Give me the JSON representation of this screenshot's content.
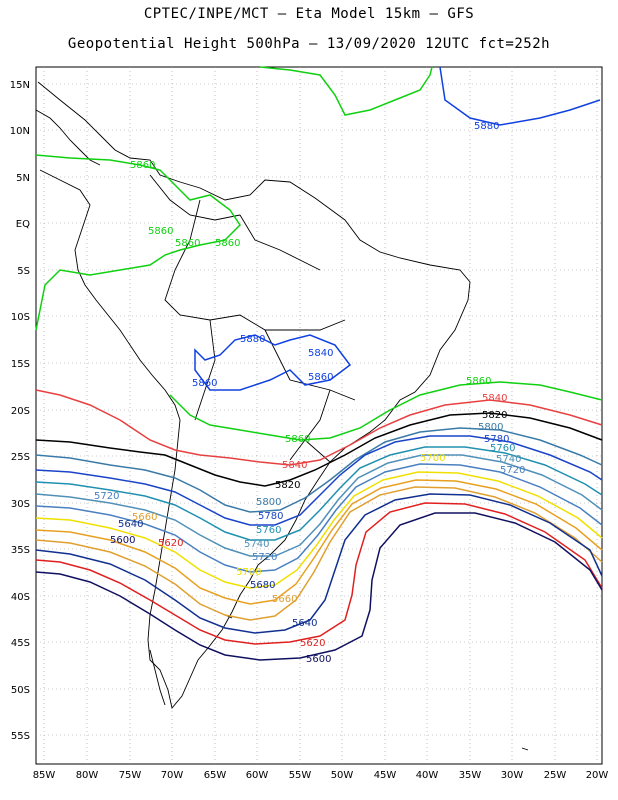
{
  "header": {
    "line1": "CPTEC/INPE/MCT –  Eta Model 15km – GFS",
    "line2": "Geopotential Height 500hPa – 13/09/2020 12UTC fct=252h"
  },
  "map": {
    "lat_ticks": [
      "15N",
      "10N",
      "5N",
      "EQ",
      "5S",
      "10S",
      "15S",
      "20S",
      "25S",
      "30S",
      "35S",
      "40S",
      "45S",
      "50S",
      "55S"
    ],
    "lon_ticks": [
      "85W",
      "80W",
      "75W",
      "70W",
      "65W",
      "60W",
      "55W",
      "50W",
      "45W",
      "40W",
      "35W",
      "30W",
      "25W",
      "20W"
    ]
  },
  "contours": {
    "c5860": "5860",
    "c5840": "5840",
    "c5820": "5820",
    "c5800": "5800",
    "c5780": "5780",
    "c5760": "5760",
    "c5740": "5740",
    "c5720": "5720",
    "c5700": "5700",
    "c5680": "5680",
    "c5660": "5660",
    "c5640": "5640",
    "c5620": "5620",
    "c5600": "5600",
    "c5880": "5880"
  },
  "colors": {
    "c5880": "#1040e0",
    "c5860": "#10d010",
    "c5840": "#e84040",
    "c5820": "#000000",
    "c5800": "#3a7aa8",
    "c5780": "#1a44c8",
    "c5760": "#2090b0",
    "c5740": "#5090b8",
    "c5720": "#4a80c0",
    "c5700": "#f0e000",
    "c5680": "#e8a020",
    "c5660": "#e0a030",
    "c5640": "#103090",
    "c5620": "#e02020",
    "c5600": "#101060"
  }
}
